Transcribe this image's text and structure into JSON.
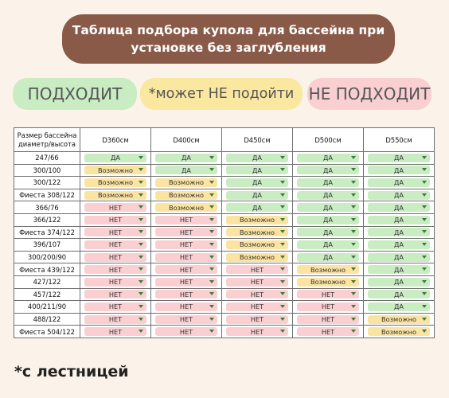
{
  "title": {
    "line1": "Таблица подбора купола для бассейна при",
    "line2": "установке без заглубления"
  },
  "legend": {
    "ok": "ПОДХОДИТ",
    "maybe": "*может НЕ подойти",
    "no": "НЕ ПОДХОДИТ"
  },
  "colors": {
    "ok": "#c9ecc3",
    "maybe": "#fbe3a2",
    "no": "#f9cfd2",
    "title_bg": "#8a5a48"
  },
  "table": {
    "size_header_line1": "Размер бассейна",
    "size_header_line2": "диаметр/высота",
    "columns": [
      "D360см",
      "D400см",
      "D450см",
      "D500см",
      "D550см"
    ],
    "rows": [
      {
        "size": "247/66",
        "cells": [
          [
            "ДА",
            "ok"
          ],
          [
            "ДА",
            "ok"
          ],
          [
            "ДА",
            "ok"
          ],
          [
            "ДА",
            "ok"
          ],
          [
            "ДА",
            "ok"
          ]
        ]
      },
      {
        "size": "300/100",
        "cells": [
          [
            "Возможно",
            "maybe"
          ],
          [
            "ДА",
            "ok"
          ],
          [
            "ДА",
            "ok"
          ],
          [
            "ДА",
            "ok"
          ],
          [
            "ДА",
            "ok"
          ]
        ]
      },
      {
        "size": "300/122",
        "cells": [
          [
            "Возможно",
            "maybe"
          ],
          [
            "Возможно",
            "maybe"
          ],
          [
            "ДА",
            "ok"
          ],
          [
            "ДА",
            "ok"
          ],
          [
            "ДА",
            "ok"
          ]
        ]
      },
      {
        "size": "Фиеста 308/122",
        "cells": [
          [
            "Возможно",
            "maybe"
          ],
          [
            "Возможно",
            "maybe"
          ],
          [
            "ДА",
            "ok"
          ],
          [
            "ДА",
            "ok"
          ],
          [
            "ДА",
            "ok"
          ]
        ]
      },
      {
        "size": "366/76",
        "cells": [
          [
            "НЕТ",
            "no"
          ],
          [
            "Возможно",
            "maybe"
          ],
          [
            "ДА",
            "ok"
          ],
          [
            "ДА",
            "ok"
          ],
          [
            "ДА",
            "ok"
          ]
        ]
      },
      {
        "size": "366/122",
        "cells": [
          [
            "НЕТ",
            "no"
          ],
          [
            "НЕТ",
            "no"
          ],
          [
            "Возможно",
            "maybe"
          ],
          [
            "ДА",
            "ok"
          ],
          [
            "ДА",
            "ok"
          ]
        ]
      },
      {
        "size": "Фиеста 374/122",
        "cells": [
          [
            "НЕТ",
            "no"
          ],
          [
            "НЕТ",
            "no"
          ],
          [
            "Возможно",
            "maybe"
          ],
          [
            "ДА",
            "ok"
          ],
          [
            "ДА",
            "ok"
          ]
        ]
      },
      {
        "size": "396/107",
        "cells": [
          [
            "НЕТ",
            "no"
          ],
          [
            "НЕТ",
            "no"
          ],
          [
            "Возможно",
            "maybe"
          ],
          [
            "ДА",
            "ok"
          ],
          [
            "ДА",
            "ok"
          ]
        ]
      },
      {
        "size": "300/200/90",
        "cells": [
          [
            "НЕТ",
            "no"
          ],
          [
            "НЕТ",
            "no"
          ],
          [
            "Возможно",
            "maybe"
          ],
          [
            "ДА",
            "ok"
          ],
          [
            "ДА",
            "ok"
          ]
        ]
      },
      {
        "size": "Фиеста 439/122",
        "cells": [
          [
            "НЕТ",
            "no"
          ],
          [
            "НЕТ",
            "no"
          ],
          [
            "НЕТ",
            "no"
          ],
          [
            "Возможно",
            "maybe"
          ],
          [
            "ДА",
            "ok"
          ]
        ]
      },
      {
        "size": "427/122",
        "cells": [
          [
            "НЕТ",
            "no"
          ],
          [
            "НЕТ",
            "no"
          ],
          [
            "НЕТ",
            "no"
          ],
          [
            "Возможно",
            "maybe"
          ],
          [
            "ДА",
            "ok"
          ]
        ]
      },
      {
        "size": "457/122",
        "cells": [
          [
            "НЕТ",
            "no"
          ],
          [
            "НЕТ",
            "no"
          ],
          [
            "НЕТ",
            "no"
          ],
          [
            "НЕТ",
            "no"
          ],
          [
            "ДА",
            "ok"
          ]
        ]
      },
      {
        "size": "400/211/90",
        "cells": [
          [
            "НЕТ",
            "no"
          ],
          [
            "НЕТ",
            "no"
          ],
          [
            "НЕТ",
            "no"
          ],
          [
            "НЕТ",
            "no"
          ],
          [
            "ДА",
            "ok"
          ]
        ]
      },
      {
        "size": "488/122",
        "cells": [
          [
            "НЕТ",
            "no"
          ],
          [
            "НЕТ",
            "no"
          ],
          [
            "НЕТ",
            "no"
          ],
          [
            "НЕТ",
            "no"
          ],
          [
            "Возможно",
            "maybe"
          ]
        ]
      },
      {
        "size": "Фиеста 504/122",
        "cells": [
          [
            "НЕТ",
            "no"
          ],
          [
            "НЕТ",
            "no"
          ],
          [
            "НЕТ",
            "no"
          ],
          [
            "НЕТ",
            "no"
          ],
          [
            "Возможно",
            "maybe"
          ]
        ]
      }
    ]
  },
  "footnote": "*с лестницей"
}
